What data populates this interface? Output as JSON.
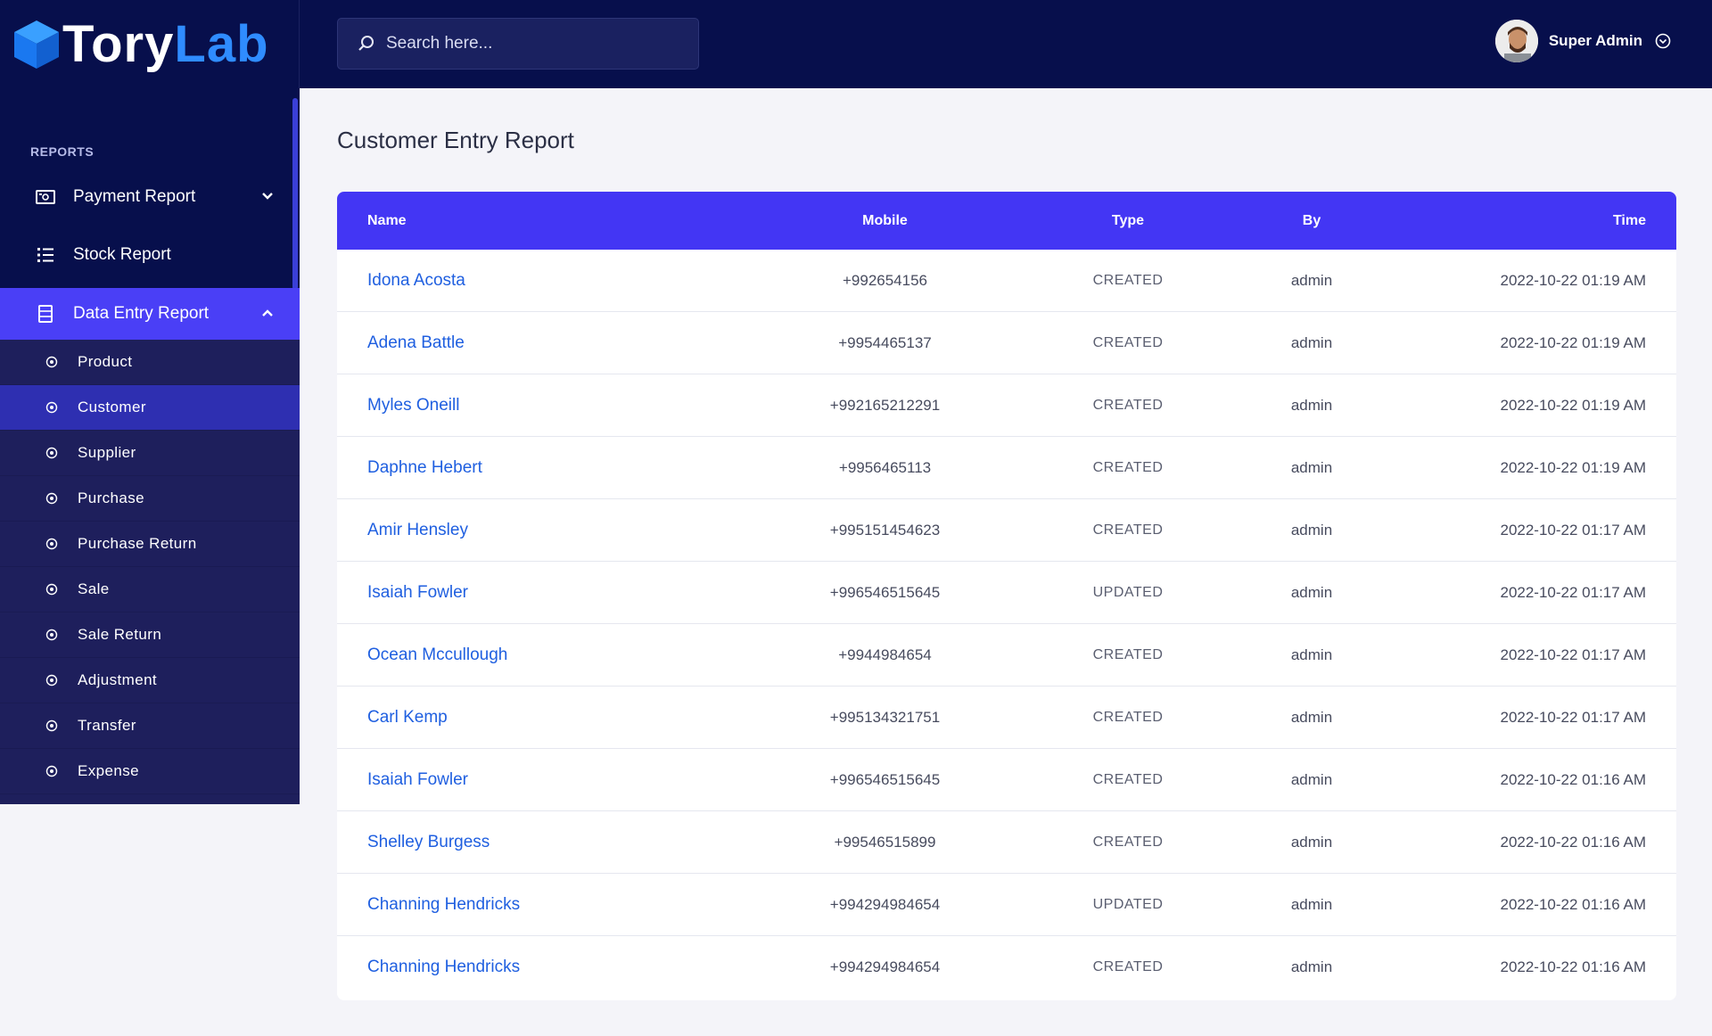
{
  "brand": {
    "part1": "Tory",
    "part2": "Lab"
  },
  "sidebar": {
    "section": "REPORTS",
    "items": [
      {
        "label": "Payment Report",
        "icon": "money-icon"
      },
      {
        "label": "Stock Report",
        "icon": "list-icon"
      },
      {
        "label": "Data Entry Report",
        "icon": "document-icon"
      }
    ],
    "sub_items": [
      "Product",
      "Customer",
      "Supplier",
      "Purchase",
      "Purchase Return",
      "Sale",
      "Sale Return",
      "Adjustment",
      "Transfer",
      "Expense"
    ],
    "active_sub": "Customer"
  },
  "header": {
    "search_placeholder": "Search here...",
    "user_name": "Super Admin"
  },
  "page": {
    "title": "Customer Entry Report"
  },
  "table": {
    "columns": [
      "Name",
      "Mobile",
      "Type",
      "By",
      "Time"
    ],
    "rows": [
      {
        "name": "Idona Acosta",
        "mobile": "+992654156",
        "type": "CREATED",
        "by": "admin",
        "time": "2022-10-22 01:19 AM"
      },
      {
        "name": "Adena Battle",
        "mobile": "+9954465137",
        "type": "CREATED",
        "by": "admin",
        "time": "2022-10-22 01:19 AM"
      },
      {
        "name": "Myles Oneill",
        "mobile": "+992165212291",
        "type": "CREATED",
        "by": "admin",
        "time": "2022-10-22 01:19 AM"
      },
      {
        "name": "Daphne Hebert",
        "mobile": "+9956465113",
        "type": "CREATED",
        "by": "admin",
        "time": "2022-10-22 01:19 AM"
      },
      {
        "name": "Amir Hensley",
        "mobile": "+995151454623",
        "type": "CREATED",
        "by": "admin",
        "time": "2022-10-22 01:17 AM"
      },
      {
        "name": "Isaiah Fowler",
        "mobile": "+996546515645",
        "type": "UPDATED",
        "by": "admin",
        "time": "2022-10-22 01:17 AM"
      },
      {
        "name": "Ocean Mccullough",
        "mobile": "+9944984654",
        "type": "CREATED",
        "by": "admin",
        "time": "2022-10-22 01:17 AM"
      },
      {
        "name": "Carl Kemp",
        "mobile": "+995134321751",
        "type": "CREATED",
        "by": "admin",
        "time": "2022-10-22 01:17 AM"
      },
      {
        "name": "Isaiah Fowler",
        "mobile": "+996546515645",
        "type": "CREATED",
        "by": "admin",
        "time": "2022-10-22 01:16 AM"
      },
      {
        "name": "Shelley Burgess",
        "mobile": "+99546515899",
        "type": "CREATED",
        "by": "admin",
        "time": "2022-10-22 01:16 AM"
      },
      {
        "name": "Channing Hendricks",
        "mobile": "+994294984654",
        "type": "UPDATED",
        "by": "admin",
        "time": "2022-10-22 01:16 AM"
      },
      {
        "name": "Channing Hendricks",
        "mobile": "+994294984654",
        "type": "CREATED",
        "by": "admin",
        "time": "2022-10-22 01:16 AM"
      }
    ]
  },
  "colors": {
    "accent": "#4336f4",
    "navy": "#070f4c",
    "link": "#1f5fe0"
  }
}
